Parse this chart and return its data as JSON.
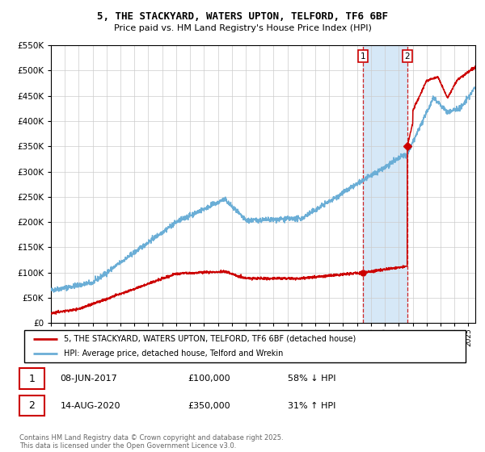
{
  "title": "5, THE STACKYARD, WATERS UPTON, TELFORD, TF6 6BF",
  "subtitle": "Price paid vs. HM Land Registry's House Price Index (HPI)",
  "x_start_year": 1995,
  "x_end_year": 2025,
  "ylim": [
    0,
    550000
  ],
  "yticks": [
    0,
    50000,
    100000,
    150000,
    200000,
    250000,
    300000,
    350000,
    400000,
    450000,
    500000,
    550000
  ],
  "transaction1": {
    "date": "08-JUN-2017",
    "price": 100000,
    "label": "1",
    "pct": "58%",
    "dir": "↓",
    "year_float": 2017.44
  },
  "transaction2": {
    "date": "14-AUG-2020",
    "price": 350000,
    "label": "2",
    "pct": "31%",
    "dir": "↑",
    "year_float": 2020.62
  },
  "hpi_color": "#6baed6",
  "price_color": "#cc0000",
  "background_color": "#ffffff",
  "plot_bg_color": "#ffffff",
  "grid_color": "#cccccc",
  "highlight_bg": "#d6e8f7",
  "legend_label_price": "5, THE STACKYARD, WATERS UPTON, TELFORD, TF6 6BF (detached house)",
  "legend_label_hpi": "HPI: Average price, detached house, Telford and Wrekin",
  "footer": "Contains HM Land Registry data © Crown copyright and database right 2025.\nThis data is licensed under the Open Government Licence v3.0."
}
